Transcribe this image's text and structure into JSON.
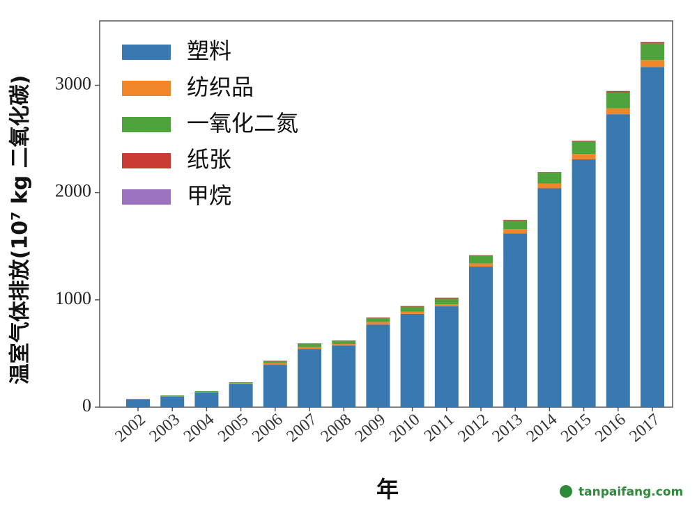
{
  "chart_data": {
    "type": "stacked_bar",
    "y_label": "温室气体排放(10⁷ kg 二氧化碳)",
    "x_label": "年",
    "watermark": "tanpaifang.com",
    "categories": [
      "2002",
      "2003",
      "2004",
      "2005",
      "2006",
      "2007",
      "2008",
      "2009",
      "2010",
      "2011",
      "2012",
      "2013",
      "2014",
      "2015",
      "2016",
      "2017"
    ],
    "series": [
      {
        "name": "塑料",
        "color": "#3a78b0",
        "values": [
          72,
          100,
          138,
          215,
          395,
          542,
          575,
          770,
          870,
          940,
          1310,
          1620,
          2040,
          2310,
          2730,
          3170
        ]
      },
      {
        "name": "纺织品",
        "color": "#f0862a",
        "values": [
          2,
          4,
          5,
          7,
          15,
          18,
          15,
          25,
          22,
          20,
          30,
          40,
          45,
          50,
          55,
          65
        ]
      },
      {
        "name": "一氧化二氮",
        "color": "#4fa33c",
        "values": [
          3,
          5,
          6,
          10,
          20,
          30,
          26,
          35,
          45,
          55,
          70,
          80,
          100,
          115,
          150,
          155
        ]
      },
      {
        "name": "纸张",
        "color": "#c93a32",
        "values": [
          0.5,
          0.5,
          0.5,
          1,
          3,
          4,
          4,
          4,
          5,
          5,
          6,
          5,
          6,
          7,
          10,
          12
        ]
      },
      {
        "name": "甲烷",
        "color": "#9a72bd",
        "values": [
          0.5,
          0.5,
          0.5,
          0.5,
          1,
          1,
          1,
          1,
          1,
          1,
          1,
          1,
          1,
          1,
          2,
          2
        ]
      }
    ],
    "ylim": [
      0,
      3600
    ],
    "yticks": [
      0,
      1000,
      2000,
      3000
    ]
  }
}
